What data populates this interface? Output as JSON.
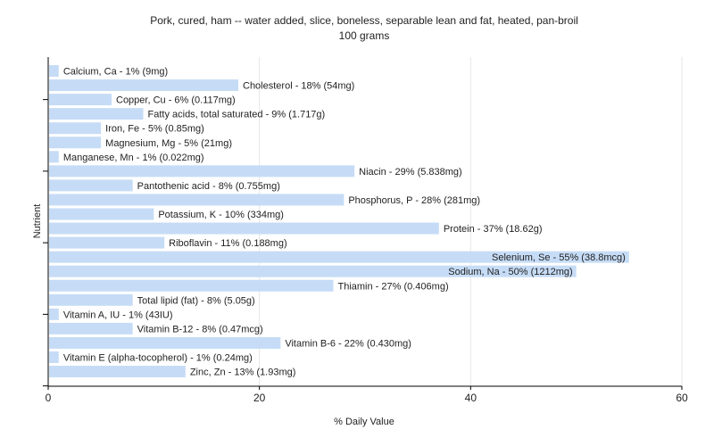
{
  "chart_data": {
    "type": "bar",
    "orientation": "horizontal",
    "title": "Pork, cured, ham -- water added, slice, boneless, separable lean and fat, heated, pan-broil",
    "subtitle": "100 grams",
    "xlabel": "% Daily Value",
    "ylabel": "Nutrient",
    "xlim": [
      0,
      60
    ],
    "xticks": [
      0,
      20,
      40,
      60
    ],
    "grid": true,
    "bar_color": "#c6dcf6",
    "categories": [
      "Calcium, Ca",
      "Cholesterol",
      "Copper, Cu",
      "Fatty acids, total saturated",
      "Iron, Fe",
      "Magnesium, Mg",
      "Manganese, Mn",
      "Niacin",
      "Pantothenic acid",
      "Phosphorus, P",
      "Potassium, K",
      "Protein",
      "Riboflavin",
      "Selenium, Se",
      "Sodium, Na",
      "Thiamin",
      "Total lipid (fat)",
      "Vitamin A, IU",
      "Vitamin B-12",
      "Vitamin B-6",
      "Vitamin E (alpha-tocopherol)",
      "Zinc, Zn"
    ],
    "values": [
      1,
      18,
      6,
      9,
      5,
      5,
      1,
      29,
      8,
      28,
      10,
      37,
      11,
      55,
      50,
      27,
      8,
      1,
      8,
      22,
      1,
      13
    ],
    "labels": [
      "Calcium, Ca - 1% (9mg)",
      "Cholesterol - 18% (54mg)",
      "Copper, Cu - 6% (0.117mg)",
      "Fatty acids, total saturated - 9% (1.717g)",
      "Iron, Fe - 5% (0.85mg)",
      "Magnesium, Mg - 5% (21mg)",
      "Manganese, Mn - 1% (0.022mg)",
      "Niacin - 29% (5.838mg)",
      "Pantothenic acid - 8% (0.755mg)",
      "Phosphorus, P - 28% (281mg)",
      "Potassium, K - 10% (334mg)",
      "Protein - 37% (18.62g)",
      "Riboflavin - 11% (0.188mg)",
      "Selenium, Se - 55% (38.8mcg)",
      "Sodium, Na - 50% (1212mg)",
      "Thiamin - 27% (0.406mg)",
      "Total lipid (fat) - 8% (5.05g)",
      "Vitamin A, IU - 1% (43IU)",
      "Vitamin B-12 - 8% (0.47mcg)",
      "Vitamin B-6 - 22% (0.430mg)",
      "Vitamin E (alpha-tocopherol) - 1% (0.24mg)",
      "Zinc, Zn - 13% (1.93mg)"
    ]
  }
}
